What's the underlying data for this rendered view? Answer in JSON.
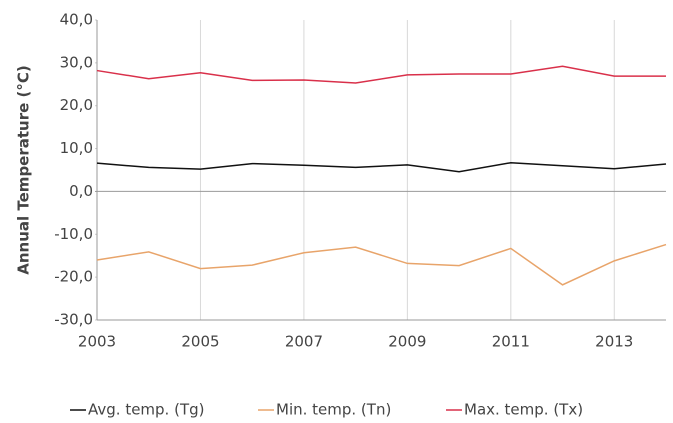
{
  "chart_data": {
    "type": "line",
    "y_label": "Annual Temperature  (°C)",
    "x": [
      2003,
      2004,
      2005,
      2006,
      2007,
      2008,
      2009,
      2010,
      2011,
      2012,
      2013,
      2014
    ],
    "xlim": [
      2003,
      2014
    ],
    "xticks": [
      2003,
      2005,
      2007,
      2009,
      2011,
      2013
    ],
    "ylim": [
      -30,
      40
    ],
    "yticks": [
      {
        "value": -30,
        "label": "-30,0"
      },
      {
        "value": -20,
        "label": "-20,0"
      },
      {
        "value": -10,
        "label": "-10,0"
      },
      {
        "value": 0,
        "label": "0,0"
      },
      {
        "value": 10,
        "label": "10,0"
      },
      {
        "value": 20,
        "label": "20,0"
      },
      {
        "value": 30,
        "label": "30,0"
      },
      {
        "value": 40,
        "label": "40,0"
      }
    ],
    "grid": "x",
    "legend": "bottom",
    "series": [
      {
        "name": "Avg. temp. (Tg)",
        "color": "#111111",
        "values": [
          6.6,
          5.6,
          5.2,
          6.5,
          6.1,
          5.6,
          6.2,
          4.6,
          6.7,
          6.0,
          5.3,
          6.4
        ]
      },
      {
        "name": "Min. temp. (Tn)",
        "color": "#e8a46a",
        "values": [
          -16.0,
          -14.1,
          -18.0,
          -17.2,
          -14.3,
          -13.0,
          -16.8,
          -17.3,
          -13.3,
          -21.8,
          -16.2,
          -12.4
        ]
      },
      {
        "name": "Max. temp. (Tx)",
        "color": "#d9304a",
        "values": [
          28.2,
          26.3,
          27.7,
          25.9,
          26.0,
          25.3,
          27.2,
          27.4,
          27.4,
          29.2,
          26.9,
          26.9
        ]
      }
    ]
  }
}
